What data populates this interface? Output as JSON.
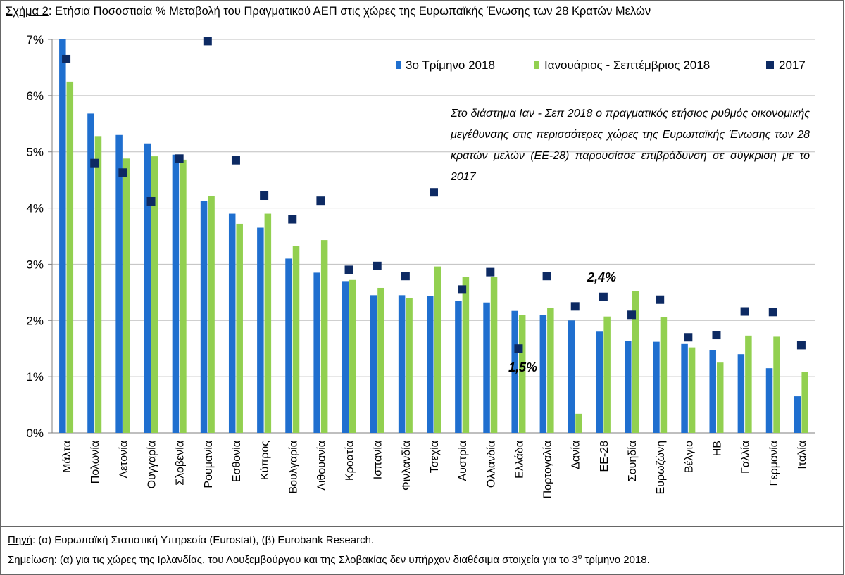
{
  "header": {
    "label": "Σχήμα 2",
    "title": ": Ετήσια Ποσοστιαία % Μεταβολή του Πραγματικού ΑΕΠ στις χώρες της Ευρωπαϊκής Ένωσης των 28 Κρατών Μελών"
  },
  "note": "Στο διάστημα Ιαν - Σεπ 2018 ο πραγματικός ετήσιος ρυθμός οικονομικής μεγέθυνσης στις περισσότερες χώρες της Ευρωπαϊκής Ένωσης των 28 κρατών μελών (ΕΕ-28) παρουσίασε επιβράδυνση σε σύγκριση με το 2017",
  "annotations": {
    "greece": "1,5%",
    "eu28": "2,4%"
  },
  "footer": {
    "source_label": "Πηγή",
    "source_text": ": (α) Ευρωπαϊκή Στατιστική Υπηρεσία (Eurostat), (β) Eurobank Research.",
    "note_label": "Σημείωση",
    "note_text_before": ": (α) για τις χώρες της Ιρλανδίας, του Λουξεμβούργου και της Σλοβακίας δεν υπήρχαν διαθέσιμα στοιχεία για το 3",
    "note_sup": "ο",
    "note_text_after": " τρίμηνο 2018."
  },
  "colors": {
    "q3": "#1f6fcf",
    "ytd": "#92d050",
    "y2017": "#0d2a63",
    "grid": "#bfbfbf",
    "axis": "#7f7f7f"
  },
  "chart_data": {
    "type": "bar",
    "ylim": [
      0,
      7
    ],
    "yticks": [
      "0%",
      "1%",
      "2%",
      "3%",
      "4%",
      "5%",
      "6%",
      "7%"
    ],
    "grid": true,
    "legend_position": "top-right",
    "categories": [
      "Μάλτα",
      "Πολωνία",
      "Λετονία",
      "Ουγγαρία",
      "Σλοβενία",
      "Ρουμανία",
      "Εσθονία",
      "Κύπρος",
      "Βουλγαρία",
      "Λιθουανία",
      "Κροατία",
      "Ισπανία",
      "Φινλανδία",
      "Τσεχία",
      "Αυστρία",
      "Ολλανδία",
      "Ελλάδα",
      "Πορτογαλία",
      "Δανία",
      "ΕΕ-28",
      "Σουηδία",
      "Ευρωζώνη",
      "Βέλγιο",
      "ΗΒ",
      "Γαλλία",
      "Γερμανία",
      "Ιταλία"
    ],
    "series": [
      {
        "name": "3ο Τρίμηνο 2018",
        "kind": "bar",
        "color": "#1f6fcf",
        "values": [
          7.0,
          5.68,
          5.3,
          5.15,
          4.95,
          4.12,
          3.9,
          3.65,
          3.1,
          2.85,
          2.7,
          2.45,
          2.45,
          2.43,
          2.35,
          2.32,
          2.17,
          2.1,
          2.0,
          1.8,
          1.63,
          1.62,
          1.58,
          1.47,
          1.4,
          1.15,
          0.65
        ]
      },
      {
        "name": "Ιανουάριος - Σεπτέμβριος 2018",
        "kind": "bar",
        "color": "#92d050",
        "values": [
          6.25,
          5.28,
          4.88,
          4.92,
          4.86,
          4.22,
          3.72,
          3.9,
          3.33,
          3.43,
          2.72,
          2.58,
          2.4,
          2.96,
          2.78,
          2.77,
          2.1,
          2.22,
          0.34,
          2.07,
          2.52,
          2.06,
          1.52,
          1.25,
          1.73,
          1.71,
          1.08
        ]
      },
      {
        "name": "2017",
        "kind": "marker",
        "color": "#0d2a63",
        "values": [
          6.65,
          4.8,
          4.63,
          4.12,
          4.88,
          6.97,
          4.85,
          4.22,
          3.8,
          4.13,
          2.9,
          2.97,
          2.79,
          4.28,
          2.55,
          2.86,
          1.5,
          2.79,
          2.25,
          2.42,
          2.1,
          2.37,
          1.7,
          1.74,
          2.16,
          2.15,
          1.56
        ]
      }
    ]
  }
}
